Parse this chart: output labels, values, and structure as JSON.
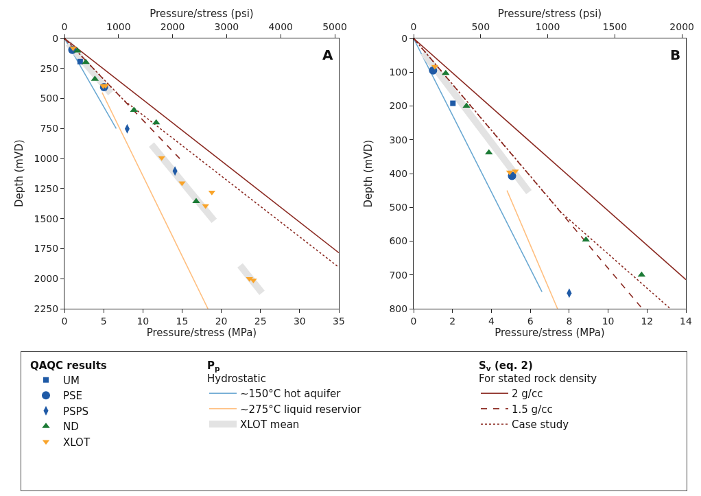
{
  "chart_data": [
    {
      "type": "scatter",
      "xlabel": "Pressure/stress (MPa)",
      "x2label": "Pressure/stress (psi)",
      "ylabel": "Depth (mVD)",
      "xlim": [
        0,
        35
      ],
      "xticks": [
        0,
        5,
        10,
        15,
        20,
        25,
        30,
        35
      ],
      "x2lim": [
        0,
        5076
      ],
      "x2ticks": [
        0,
        1000,
        2000,
        3000,
        4000,
        5000
      ],
      "ylim": [
        2250,
        0
      ],
      "yticks": [
        0,
        250,
        500,
        750,
        1000,
        1250,
        1500,
        1750,
        2000,
        2250
      ],
      "grid": false,
      "legend": "bottom",
      "annotations": [
        "A",
        "QAQC results",
        "P$_{p}$",
        "Hydrostatic",
        "S$_{v}$ (eq. 2)",
        "For stated rock density"
      ],
      "series": [
        {
          "name": "UM",
          "type": "scatter",
          "marker": "square",
          "color": "#1f5aa6",
          "x": [
            2.0
          ],
          "values": [
            193
          ]
        },
        {
          "name": "PSE",
          "type": "scatter",
          "marker": "circle",
          "color": "#1f5aa6",
          "x": [
            1.0,
            5.05
          ],
          "values": [
            95,
            406
          ]
        },
        {
          "name": "PSPS",
          "type": "scatter",
          "marker": "diamond",
          "color": "#1f5aa6",
          "x": [
            8.0,
            14.1
          ],
          "values": [
            753,
            1103
          ]
        },
        {
          "name": "ND",
          "type": "scatter",
          "marker": "triangle",
          "color": "#1b7a35",
          "x": [
            1.65,
            2.72,
            3.88,
            8.86,
            11.7,
            16.8
          ],
          "values": [
            103,
            199,
            338,
            597,
            701,
            1356
          ]
        },
        {
          "name": "XLOT",
          "type": "scatter",
          "marker": "triangle-down",
          "color": "#f9a42a",
          "x": [
            1.1,
            4.95,
            5.25,
            12.4,
            15.0,
            18.8,
            18.0,
            23.6,
            24.1
          ],
          "values": [
            80,
            395,
            392,
            994,
            1204,
            1280,
            1394,
            2000,
            2013
          ]
        },
        {
          "name": "~150°C hot aquifer",
          "type": "line",
          "marker": "none",
          "line_style": "solid",
          "color": "#6aa8d2",
          "x": [
            0,
            6.6
          ],
          "values": [
            0,
            750
          ]
        },
        {
          "name": "~275°C liquid reservior",
          "type": "line",
          "marker": "none",
          "line_style": "solid",
          "color": "#ffbf80",
          "x": [
            4.8,
            18.3
          ],
          "values": [
            450,
            2250
          ]
        },
        {
          "name": "XLOT mean",
          "type": "line",
          "marker": "none",
          "line_style": "solid",
          "color": "#e3e3e3",
          "x": [
            0.5,
            5.9,
            null,
            11.1,
            19.1,
            null,
            22.4,
            25.2
          ],
          "values": [
            42,
            455,
            null,
            884,
            1518,
            null,
            1890,
            2118
          ]
        },
        {
          "name": "2 g/cc",
          "type": "line",
          "marker": "none",
          "line_style": "solid",
          "color": "#8b2a22",
          "x": [
            0,
            35
          ],
          "values": [
            0,
            1784
          ]
        },
        {
          "name": "1.5 g/cc",
          "type": "line",
          "marker": "none",
          "line_style": "dashed",
          "color": "#8b2a22",
          "x": [
            0,
            14.7
          ],
          "values": [
            0,
            1000
          ]
        },
        {
          "name": "Case study",
          "type": "line",
          "marker": "none",
          "line_style": "dotted",
          "color": "#8b2a22",
          "x": [
            0,
            7.6,
            13.2,
            35
          ],
          "values": [
            0,
            516,
            800,
            1905
          ]
        }
      ]
    },
    {
      "type": "scatter",
      "xlabel": "Pressure/stress (MPa)",
      "x2label": "Pressure/stress (psi)",
      "ylabel": "Depth (mVD)",
      "xlim": [
        0,
        14
      ],
      "xticks": [
        0,
        2,
        4,
        6,
        8,
        10,
        12,
        14
      ],
      "x2lim": [
        0,
        2030
      ],
      "x2ticks": [
        0,
        500,
        1000,
        1500,
        2000
      ],
      "ylim": [
        800,
        0
      ],
      "yticks": [
        0,
        100,
        200,
        300,
        400,
        500,
        600,
        700,
        800
      ],
      "grid": false,
      "annotations": [
        "B"
      ],
      "series": [
        {
          "type": "scatter",
          "marker": "square",
          "color": "#1f5aa6",
          "x": [
            2.02
          ],
          "values": [
            192
          ]
        },
        {
          "type": "scatter",
          "marker": "circle",
          "color": "#1f5aa6",
          "x": [
            1.0,
            5.06
          ],
          "values": [
            95,
            407
          ]
        },
        {
          "type": "scatter",
          "marker": "diamond",
          "color": "#1f5aa6",
          "x": [
            8.0
          ],
          "values": [
            754
          ]
        },
        {
          "type": "scatter",
          "marker": "triangle",
          "color": "#1b7a35",
          "x": [
            1.65,
            2.72,
            3.87,
            8.86,
            11.72
          ],
          "values": [
            103,
            200,
            338,
            596,
            700
          ]
        },
        {
          "type": "scatter",
          "marker": "triangle-down",
          "color": "#f9a42a",
          "x": [
            1.09,
            4.94,
            5.23
          ],
          "values": [
            83,
            396,
            393
          ]
        },
        {
          "type": "line",
          "marker": "none",
          "line_style": "solid",
          "color": "#6aa8d2",
          "x": [
            0,
            6.6
          ],
          "values": [
            0,
            750
          ]
        },
        {
          "type": "line",
          "marker": "none",
          "line_style": "solid",
          "color": "#ffbf80",
          "x": [
            4.8,
            7.4
          ],
          "values": [
            450,
            800
          ]
        },
        {
          "type": "line",
          "marker": "none",
          "line_style": "solid",
          "color": "#e3e3e3",
          "x": [
            0.5,
            5.93
          ],
          "values": [
            42,
            455
          ]
        },
        {
          "type": "line",
          "marker": "none",
          "line_style": "solid",
          "color": "#8b2a22",
          "x": [
            0,
            14
          ],
          "values": [
            0,
            714
          ]
        },
        {
          "type": "line",
          "marker": "none",
          "line_style": "dashed",
          "color": "#8b2a22",
          "x": [
            0,
            11.76
          ],
          "values": [
            0,
            800
          ]
        },
        {
          "type": "line",
          "marker": "none",
          "line_style": "dotted",
          "color": "#8b2a22",
          "x": [
            0,
            7.6,
            13.2
          ],
          "values": [
            0,
            516,
            800
          ]
        }
      ]
    }
  ]
}
